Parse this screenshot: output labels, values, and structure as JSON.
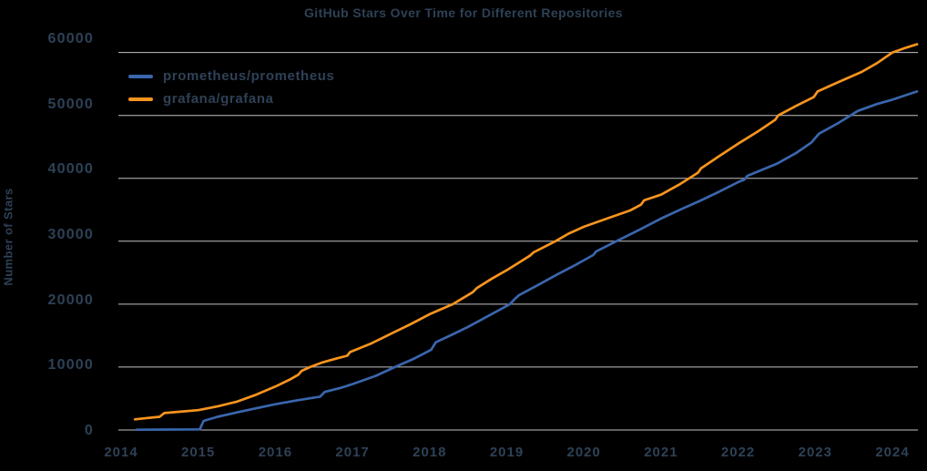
{
  "chart_data": {
    "type": "line",
    "title": "GitHub Stars Over Time for Different Repositories",
    "xlabel": "",
    "ylabel": "Number of Stars",
    "xlim": [
      2013.85,
      2024.45
    ],
    "ylim": [
      0,
      60000
    ],
    "grid": "horizontal",
    "legend_position": "upper-left-inside",
    "colors": {
      "text": "#2e4156",
      "grid": "#c2c2c2",
      "background": "#000000"
    },
    "x_ticks": [
      {
        "label": "2014",
        "value": 2014
      },
      {
        "label": "2015",
        "value": 2015
      },
      {
        "label": "2016",
        "value": 2016
      },
      {
        "label": "2017",
        "value": 2017
      },
      {
        "label": "2018",
        "value": 2018
      },
      {
        "label": "2019",
        "value": 2019
      },
      {
        "label": "2020",
        "value": 2020
      },
      {
        "label": "2021",
        "value": 2021
      },
      {
        "label": "2022",
        "value": 2022
      },
      {
        "label": "2023",
        "value": 2023
      },
      {
        "label": "2024",
        "value": 2024
      }
    ],
    "y_ticks": [
      {
        "label": "0",
        "value": 0
      },
      {
        "label": "10000",
        "value": 10000
      },
      {
        "label": "20000",
        "value": 20000
      },
      {
        "label": "30000",
        "value": 30000
      },
      {
        "label": "40000",
        "value": 40000
      },
      {
        "label": "50000",
        "value": 50000
      },
      {
        "label": "60000",
        "value": 60000
      }
    ],
    "series": [
      {
        "name": "prometheus/prometheus",
        "color": "#3a66ad",
        "points": [
          [
            2014.2,
            40
          ],
          [
            2014.6,
            70
          ],
          [
            2015.02,
            100
          ],
          [
            2015.07,
            1450
          ],
          [
            2015.25,
            2100
          ],
          [
            2015.5,
            2800
          ],
          [
            2015.75,
            3450
          ],
          [
            2016.0,
            4100
          ],
          [
            2016.3,
            4750
          ],
          [
            2016.58,
            5300
          ],
          [
            2016.64,
            6050
          ],
          [
            2016.85,
            6700
          ],
          [
            2017.0,
            7300
          ],
          [
            2017.3,
            8600
          ],
          [
            2017.55,
            10000
          ],
          [
            2017.8,
            11350
          ],
          [
            2018.02,
            12750
          ],
          [
            2018.08,
            13950
          ],
          [
            2018.3,
            15200
          ],
          [
            2018.5,
            16400
          ],
          [
            2018.75,
            18050
          ],
          [
            2019.04,
            20000
          ],
          [
            2019.11,
            20900
          ],
          [
            2019.16,
            21450
          ],
          [
            2019.4,
            23000
          ],
          [
            2019.65,
            24700
          ],
          [
            2019.9,
            26300
          ],
          [
            2020.12,
            27800
          ],
          [
            2020.16,
            28400
          ],
          [
            2020.42,
            30000
          ],
          [
            2020.7,
            31700
          ],
          [
            2021.0,
            33600
          ],
          [
            2021.3,
            35300
          ],
          [
            2021.5,
            36400
          ],
          [
            2021.75,
            37850
          ],
          [
            2022.0,
            39400
          ],
          [
            2022.08,
            39800
          ],
          [
            2022.12,
            40400
          ],
          [
            2022.5,
            42300
          ],
          [
            2022.75,
            44000
          ],
          [
            2022.95,
            45700
          ],
          [
            2023.0,
            46400
          ],
          [
            2023.05,
            47100
          ],
          [
            2023.3,
            48800
          ],
          [
            2023.55,
            50700
          ],
          [
            2023.8,
            51800
          ],
          [
            2024.0,
            52500
          ],
          [
            2024.32,
            53800
          ]
        ]
      },
      {
        "name": "grafana/grafana",
        "color": "#f7941e",
        "points": [
          [
            2014.18,
            1700
          ],
          [
            2014.3,
            1850
          ],
          [
            2014.5,
            2100
          ],
          [
            2014.56,
            2700
          ],
          [
            2014.75,
            2900
          ],
          [
            2015.0,
            3150
          ],
          [
            2015.25,
            3750
          ],
          [
            2015.5,
            4500
          ],
          [
            2015.75,
            5600
          ],
          [
            2016.0,
            6900
          ],
          [
            2016.2,
            8100
          ],
          [
            2016.3,
            8800
          ],
          [
            2016.34,
            9400
          ],
          [
            2016.45,
            10000
          ],
          [
            2016.6,
            10700
          ],
          [
            2016.8,
            11400
          ],
          [
            2016.93,
            11800
          ],
          [
            2016.97,
            12400
          ],
          [
            2017.25,
            13800
          ],
          [
            2017.5,
            15300
          ],
          [
            2017.75,
            16800
          ],
          [
            2018.0,
            18400
          ],
          [
            2018.3,
            20000
          ],
          [
            2018.56,
            21900
          ],
          [
            2018.61,
            22550
          ],
          [
            2018.8,
            24000
          ],
          [
            2019.0,
            25400
          ],
          [
            2019.3,
            27700
          ],
          [
            2019.35,
            28250
          ],
          [
            2019.63,
            30000
          ],
          [
            2019.8,
            31200
          ],
          [
            2020.0,
            32300
          ],
          [
            2020.3,
            33600
          ],
          [
            2020.6,
            34900
          ],
          [
            2020.74,
            35800
          ],
          [
            2020.78,
            36500
          ],
          [
            2021.0,
            37400
          ],
          [
            2021.25,
            39100
          ],
          [
            2021.48,
            40900
          ],
          [
            2021.52,
            41600
          ],
          [
            2021.75,
            43500
          ],
          [
            2022.0,
            45500
          ],
          [
            2022.25,
            47400
          ],
          [
            2022.48,
            49300
          ],
          [
            2022.52,
            50000
          ],
          [
            2022.75,
            51500
          ],
          [
            2022.98,
            52900
          ],
          [
            2023.03,
            53800
          ],
          [
            2023.3,
            55300
          ],
          [
            2023.6,
            56900
          ],
          [
            2023.8,
            58300
          ],
          [
            2024.0,
            60000
          ],
          [
            2024.15,
            60650
          ],
          [
            2024.32,
            61300
          ]
        ]
      }
    ]
  }
}
